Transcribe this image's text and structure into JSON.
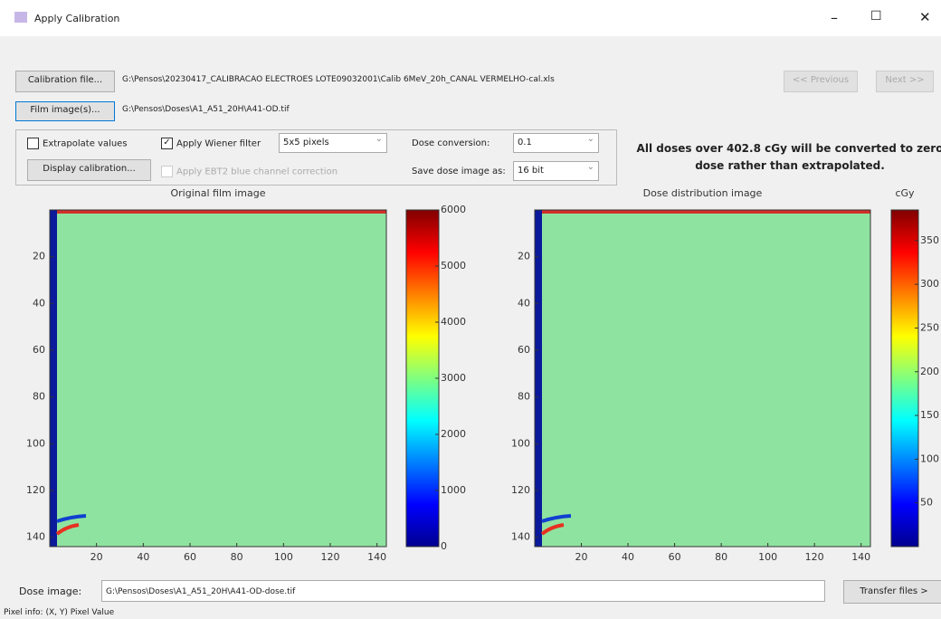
{
  "window": {
    "title": "Apply Calibration"
  },
  "buttons": {
    "calibration_file": "Calibration file...",
    "film_images": "Film image(s)...",
    "previous": "<< Previous",
    "next": "Next >>",
    "display_calibration": "Display calibration...",
    "transfer_files": "Transfer files >"
  },
  "paths": {
    "calibration": "G:\\Pensos\\20230417_CALIBRACAO ELECTROES LOTE09032001\\Calib 6MeV_20h_CANAL VERMELHO-cal.xls",
    "film": "G:\\Pensos\\Doses\\A1_A51_20H\\A41-OD.tif",
    "dose_image": "G:\\Pensos\\Doses\\A1_A51_20H\\A41-OD-dose.tif"
  },
  "options": {
    "extrapolate": "Extrapolate values",
    "wiener": "Apply Wiener filter",
    "wiener_size": "5x5 pixels",
    "ebt2": "Apply EBT2 blue channel correction",
    "dose_conversion_label": "Dose conversion:",
    "dose_conversion": "0.1",
    "save_label": "Save dose image as:",
    "save_format": "16 bit"
  },
  "warning": "All doses over 402.8 cGy will be converted to zero dose rather than extrapolated.",
  "dose_image_label": "Dose image:",
  "status": "Pixel info: (X, Y)  Pixel Value",
  "panels": [
    {
      "title": "Original film image",
      "xlim": [
        0,
        144
      ],
      "ylim": [
        0,
        144
      ],
      "xticks": [
        20,
        40,
        60,
        80,
        100,
        120,
        140
      ],
      "yticks": [
        20,
        40,
        60,
        80,
        100,
        120,
        140
      ],
      "colorbar": {
        "lim": [
          0,
          6000
        ],
        "ticks": [
          0,
          1000,
          2000,
          3000,
          4000,
          5000,
          6000
        ]
      }
    },
    {
      "title": "Dose distribution image",
      "xlim": [
        0,
        144
      ],
      "ylim": [
        0,
        144
      ],
      "xticks": [
        20,
        40,
        60,
        80,
        100,
        120,
        140
      ],
      "yticks": [
        20,
        40,
        60,
        80,
        100,
        120,
        140
      ],
      "colorbar": {
        "label": "cGy",
        "lim": [
          0,
          385
        ],
        "ticks": [
          50,
          100,
          150,
          200,
          250,
          300,
          350
        ]
      }
    }
  ]
}
